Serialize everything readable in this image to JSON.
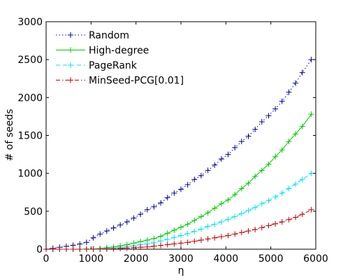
{
  "chart_data": {
    "type": "line",
    "title": "",
    "xlabel": "η",
    "ylabel": "# of seeds",
    "xlim": [
      0,
      6000
    ],
    "ylim": [
      0,
      3000
    ],
    "xticks": [
      0,
      1000,
      2000,
      3000,
      4000,
      5000,
      6000
    ],
    "yticks": [
      0,
      500,
      1000,
      1500,
      2000,
      2500,
      3000
    ],
    "grid": false,
    "legend_position": "top-left",
    "x": [
      0,
      150,
      300,
      450,
      600,
      750,
      900,
      1050,
      1200,
      1350,
      1500,
      1650,
      1800,
      1950,
      2100,
      2250,
      2400,
      2550,
      2700,
      2850,
      3000,
      3150,
      3300,
      3450,
      3600,
      3750,
      3900,
      4050,
      4200,
      4350,
      4500,
      4650,
      4800,
      4950,
      5100,
      5250,
      5400,
      5550,
      5700,
      5900
    ],
    "series": [
      {
        "name": "Random",
        "color": "#0000a0",
        "line_style": "dotted",
        "marker": "+",
        "values": [
          0,
          12,
          25,
          38,
          52,
          68,
          90,
          150,
          200,
          240,
          280,
          320,
          360,
          410,
          460,
          520,
          560,
          610,
          680,
          740,
          790,
          850,
          920,
          970,
          1040,
          1110,
          1190,
          1250,
          1340,
          1420,
          1490,
          1580,
          1680,
          1760,
          1850,
          1950,
          2070,
          2190,
          2330,
          2500
        ]
      },
      {
        "name": "High-degree",
        "color": "#00cc00",
        "line_style": "solid",
        "marker": "+",
        "values": [
          0,
          0,
          0,
          0,
          0,
          0,
          2,
          5,
          10,
          20,
          30,
          45,
          60,
          80,
          100,
          120,
          140,
          170,
          210,
          250,
          290,
          330,
          380,
          430,
          480,
          540,
          600,
          650,
          720,
          800,
          870,
          960,
          1040,
          1120,
          1220,
          1310,
          1420,
          1520,
          1620,
          1780
        ]
      },
      {
        "name": "PageRank",
        "color": "#00e5ee",
        "line_style": "dashed",
        "marker": "+",
        "values": [
          0,
          0,
          0,
          0,
          0,
          0,
          0,
          2,
          5,
          10,
          15,
          25,
          35,
          45,
          60,
          70,
          85,
          110,
          130,
          155,
          180,
          205,
          235,
          265,
          300,
          330,
          360,
          395,
          430,
          470,
          510,
          550,
          600,
          640,
          690,
          740,
          800,
          860,
          920,
          1000
        ]
      },
      {
        "name": "MinSeed-PCG[0.01]",
        "color": "#cc0000",
        "line_style": "dashdot",
        "marker": "+",
        "values": [
          0,
          0,
          0,
          0,
          0,
          0,
          0,
          0,
          0,
          2,
          5,
          10,
          15,
          20,
          25,
          30,
          40,
          50,
          60,
          70,
          80,
          90,
          105,
          120,
          135,
          150,
          165,
          180,
          200,
          220,
          240,
          260,
          285,
          310,
          335,
          360,
          390,
          420,
          460,
          520
        ]
      }
    ]
  }
}
